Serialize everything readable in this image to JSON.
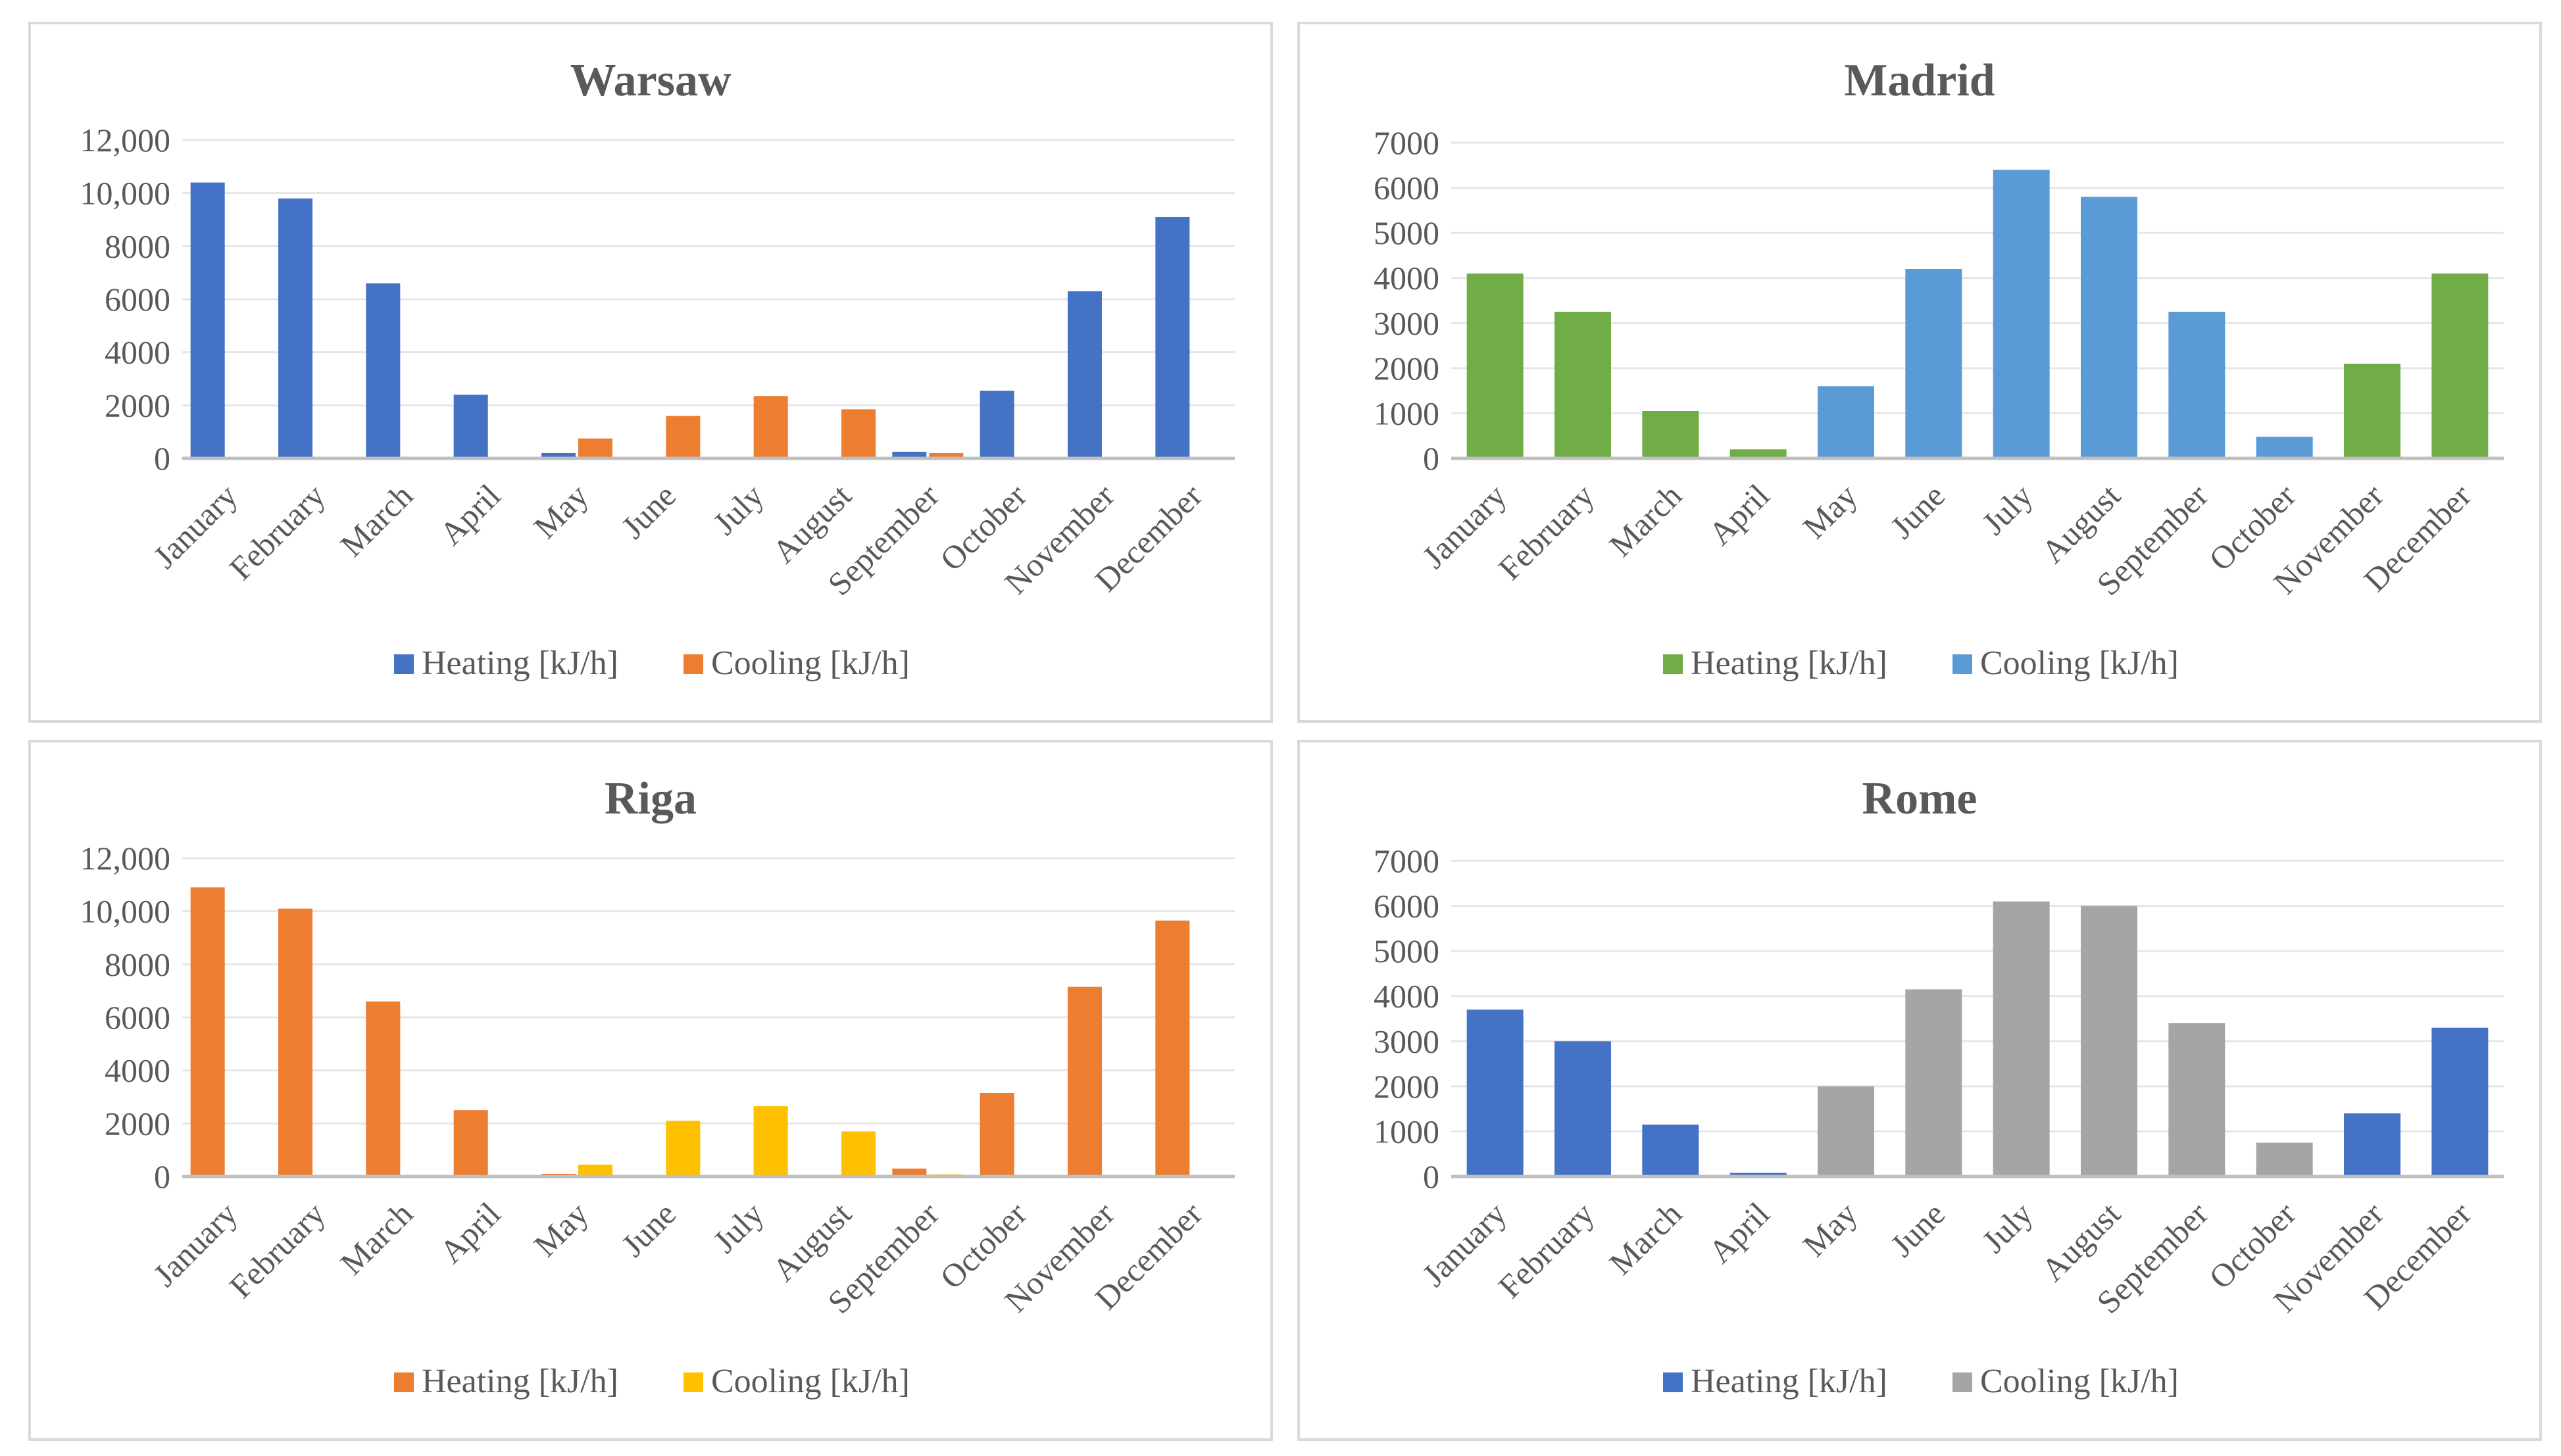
{
  "months": [
    "January",
    "February",
    "March",
    "April",
    "May",
    "June",
    "July",
    "August",
    "September",
    "October",
    "November",
    "December"
  ],
  "chart_data": [
    {
      "type": "bar",
      "title": "Warsaw",
      "categories": [
        "January",
        "February",
        "March",
        "April",
        "May",
        "June",
        "July",
        "August",
        "September",
        "October",
        "November",
        "December"
      ],
      "ylim": [
        0,
        12000
      ],
      "ytick_values": [
        0,
        2000,
        4000,
        6000,
        8000,
        10000,
        12000
      ],
      "ytick_labels": [
        "0",
        "2000",
        "4000",
        "6000",
        "8000",
        "10,000",
        "12,000"
      ],
      "series": [
        {
          "name": "Heating [kJ/h]",
          "color": "#4472C4",
          "values": [
            10400,
            9800,
            6600,
            2400,
            200,
            0,
            0,
            0,
            250,
            2550,
            6300,
            9100
          ]
        },
        {
          "name": "Cooling [kJ/h]",
          "color": "#ED7D31",
          "values": [
            0,
            0,
            0,
            0,
            750,
            1600,
            2350,
            1850,
            200,
            0,
            0,
            0
          ]
        }
      ]
    },
    {
      "type": "bar",
      "title": "Madrid",
      "categories": [
        "January",
        "February",
        "March",
        "April",
        "May",
        "June",
        "July",
        "August",
        "September",
        "October",
        "November",
        "December"
      ],
      "ylim": [
        0,
        7000
      ],
      "ytick_values": [
        0,
        1000,
        2000,
        3000,
        4000,
        5000,
        6000,
        7000
      ],
      "ytick_labels": [
        "0",
        "1000",
        "2000",
        "3000",
        "4000",
        "5000",
        "6000",
        "7000"
      ],
      "series": [
        {
          "name": "Heating [kJ/h]",
          "color": "#70AD47",
          "values": [
            4100,
            3250,
            1050,
            200,
            0,
            0,
            0,
            0,
            0,
            0,
            2100,
            4100
          ]
        },
        {
          "name": "Cooling [kJ/h]",
          "color": "#5B9BD5",
          "values": [
            0,
            0,
            0,
            0,
            1600,
            4200,
            6400,
            5800,
            3250,
            480,
            0,
            0
          ]
        }
      ],
      "overlay": true
    },
    {
      "type": "bar",
      "title": "Riga",
      "categories": [
        "January",
        "February",
        "March",
        "April",
        "May",
        "June",
        "July",
        "August",
        "September",
        "October",
        "November",
        "December"
      ],
      "ylim": [
        0,
        12000
      ],
      "ytick_values": [
        0,
        2000,
        4000,
        6000,
        8000,
        10000,
        12000
      ],
      "ytick_labels": [
        "0",
        "2000",
        "4000",
        "6000",
        "8000",
        "10,000",
        "12,000"
      ],
      "series": [
        {
          "name": "Heating [kJ/h]",
          "color": "#ED7D31",
          "values": [
            10900,
            10100,
            6600,
            2500,
            100,
            0,
            0,
            0,
            300,
            3150,
            7150,
            9650
          ]
        },
        {
          "name": "Cooling [kJ/h]",
          "color": "#FFC000",
          "values": [
            0,
            0,
            0,
            0,
            450,
            2100,
            2650,
            1700,
            80,
            0,
            0,
            0
          ]
        }
      ]
    },
    {
      "type": "bar",
      "title": "Rome",
      "categories": [
        "January",
        "February",
        "March",
        "April",
        "May",
        "June",
        "July",
        "August",
        "September",
        "October",
        "November",
        "December"
      ],
      "ylim": [
        0,
        7000
      ],
      "ytick_values": [
        0,
        1000,
        2000,
        3000,
        4000,
        5000,
        6000,
        7000
      ],
      "ytick_labels": [
        "0",
        "1000",
        "2000",
        "3000",
        "4000",
        "5000",
        "6000",
        "7000"
      ],
      "series": [
        {
          "name": "Heating [kJ/h]",
          "color": "#4472C4",
          "values": [
            3700,
            3000,
            1150,
            80,
            0,
            0,
            0,
            0,
            0,
            0,
            1400,
            3300
          ]
        },
        {
          "name": "Cooling [kJ/h]",
          "color": "#A5A5A5",
          "values": [
            0,
            0,
            0,
            0,
            2000,
            4150,
            6100,
            6000,
            3400,
            750,
            0,
            0
          ]
        }
      ],
      "overlay": true
    }
  ]
}
